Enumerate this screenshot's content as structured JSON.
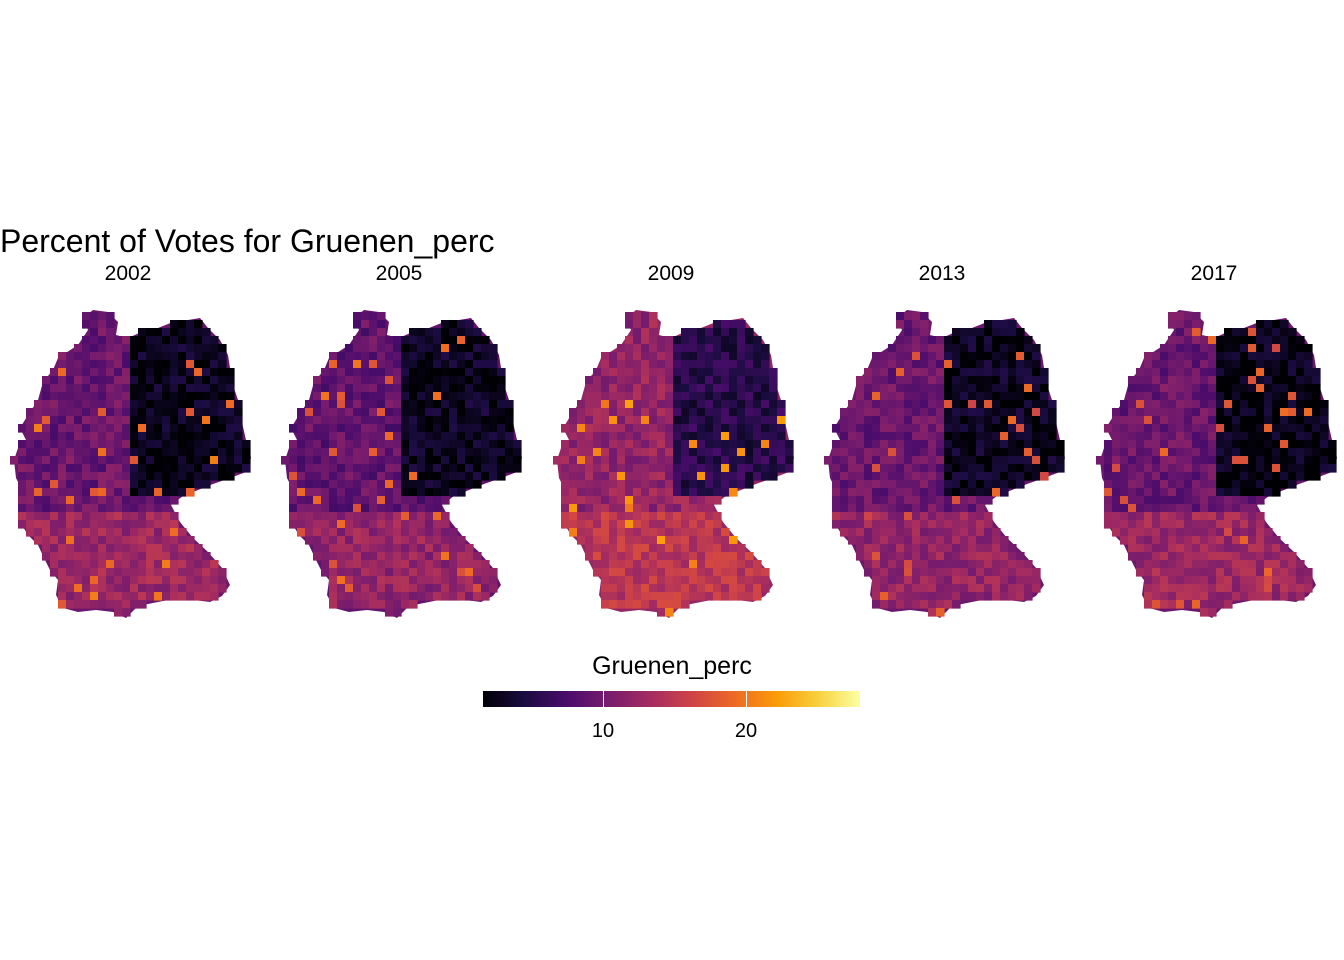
{
  "title": "Percent of Votes for Gruenen_perc",
  "panels": [
    {
      "year": "2002",
      "level_west": 0.3,
      "level_east": 0.04,
      "level_south": 0.42,
      "highlight": 0.6
    },
    {
      "year": "2005",
      "level_west": 0.28,
      "level_east": 0.05,
      "level_south": 0.4,
      "highlight": 0.58
    },
    {
      "year": "2009",
      "level_west": 0.4,
      "level_east": 0.14,
      "level_south": 0.5,
      "highlight": 0.68
    },
    {
      "year": "2013",
      "level_west": 0.3,
      "level_east": 0.05,
      "level_south": 0.4,
      "highlight": 0.55
    },
    {
      "year": "2017",
      "level_west": 0.3,
      "level_east": 0.03,
      "level_south": 0.42,
      "highlight": 0.56
    }
  ],
  "legend": {
    "title": "Gruenen_perc",
    "palette": "inferno",
    "min": 1.6,
    "max": 28,
    "ticks": [
      {
        "value": 10,
        "label": "10"
      },
      {
        "value": 20,
        "label": "20"
      }
    ],
    "colors": [
      "#000004",
      "#1b0c41",
      "#4a0c6b",
      "#781c6d",
      "#a52c60",
      "#cf4446",
      "#ed6925",
      "#fb9b06",
      "#f7d13d",
      "#fcffa4"
    ]
  }
}
